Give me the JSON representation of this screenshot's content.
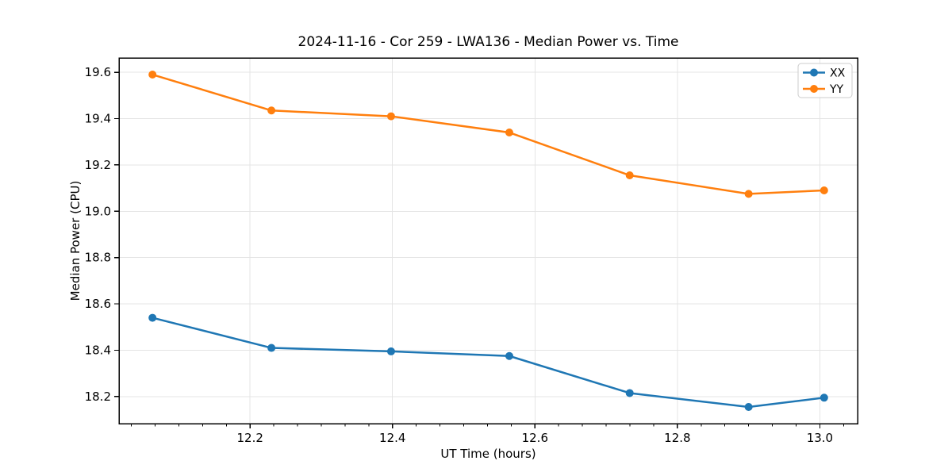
{
  "chart_data": {
    "type": "line",
    "title": "2024-11-16 - Cor 259 - LWA136 - Median Power vs. Time",
    "xlabel": "UT Time (hours)",
    "ylabel": "Median Power (CPU)",
    "xlim": [
      12.016,
      13.053
    ],
    "ylim": [
      18.083,
      19.662
    ],
    "xticks": [
      12.2,
      12.4,
      12.6,
      12.8,
      13.0
    ],
    "yticks": [
      18.2,
      18.4,
      18.6,
      18.8,
      19.0,
      19.2,
      19.4,
      19.6
    ],
    "x_major_step": 0.2,
    "x_minor_divisions": 6,
    "grid": true,
    "legend_position": "upper right",
    "x": [
      12.063,
      12.23,
      12.398,
      12.564,
      12.733,
      12.9,
      13.006
    ],
    "series": [
      {
        "name": "XX",
        "color": "#1f77b4",
        "values": [
          18.54,
          18.41,
          18.395,
          18.375,
          18.215,
          18.155,
          18.195
        ]
      },
      {
        "name": "YY",
        "color": "#ff7f0e",
        "values": [
          19.59,
          19.435,
          19.41,
          19.34,
          19.155,
          19.075,
          19.09
        ]
      }
    ],
    "style": {
      "grid_color": "#e4e4e4",
      "spine_color": "#000000",
      "background": "#ffffff"
    }
  }
}
